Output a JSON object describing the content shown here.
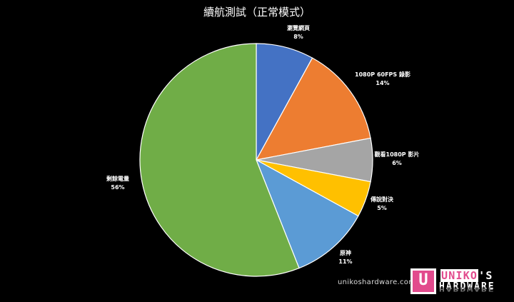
{
  "chart_data": {
    "type": "pie",
    "title": "續航測試（正常模式）",
    "start_angle_deg": 0,
    "direction": "clockwise",
    "slices": [
      {
        "name": "瀏覽網頁",
        "value": 8,
        "label": "8%",
        "color": "#4472C4"
      },
      {
        "name": "1080P 60FPS 錄影",
        "value": 14,
        "label": "14%",
        "color": "#ED7D31"
      },
      {
        "name": "觀看1080P 影片",
        "value": 6,
        "label": "6%",
        "color": "#A5A5A5"
      },
      {
        "name": "傳說對決",
        "value": 5,
        "label": "5%",
        "color": "#FFC000"
      },
      {
        "name": "原神",
        "value": 11,
        "label": "11%",
        "color": "#5B9BD5"
      },
      {
        "name": "剩餘電量",
        "value": 56,
        "label": "56%",
        "color": "#70AD47"
      }
    ]
  },
  "watermark": {
    "url": "unikoshardware.com",
    "logo_icon": "U",
    "logo_line1_a": "UNIKO",
    "logo_line1_b": "'S",
    "logo_line2": "HARDWARE",
    "logo_line3": "HARDWARE"
  }
}
